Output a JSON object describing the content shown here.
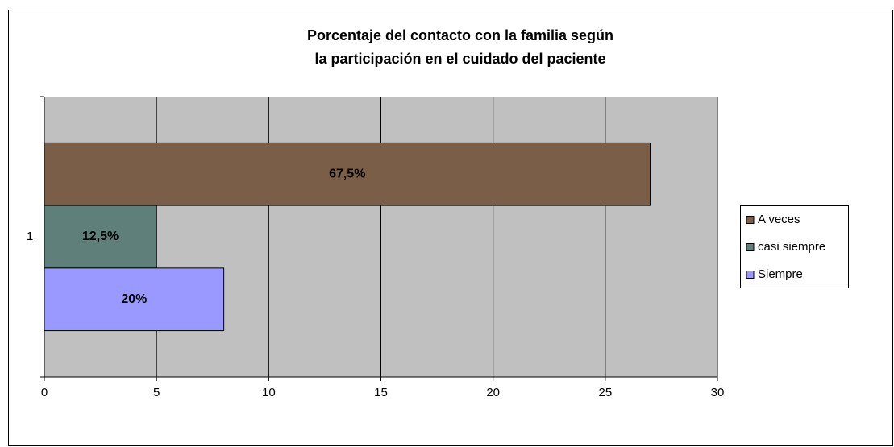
{
  "chart_data": {
    "type": "hbar",
    "title": [
      "Porcentaje del contacto con la familia según",
      "la participación en el cuidado del paciente"
    ],
    "categories": [
      "1"
    ],
    "series": [
      {
        "name": "A veces",
        "color": "#7b5e48",
        "values": [
          27
        ],
        "value_labels": [
          "67,5%"
        ]
      },
      {
        "name": "casi siempre",
        "color": "#5f7f7a",
        "values": [
          5
        ],
        "value_labels": [
          "12,5%"
        ]
      },
      {
        "name": "Siempre",
        "color": "#9999ff",
        "values": [
          8
        ],
        "value_labels": [
          "20%"
        ]
      }
    ],
    "xlim": [
      0,
      30
    ],
    "xticks": [
      0,
      5,
      10,
      15,
      20,
      25,
      30
    ],
    "grid": true,
    "legend": "right",
    "plot_background": "#c0c0c0"
  }
}
